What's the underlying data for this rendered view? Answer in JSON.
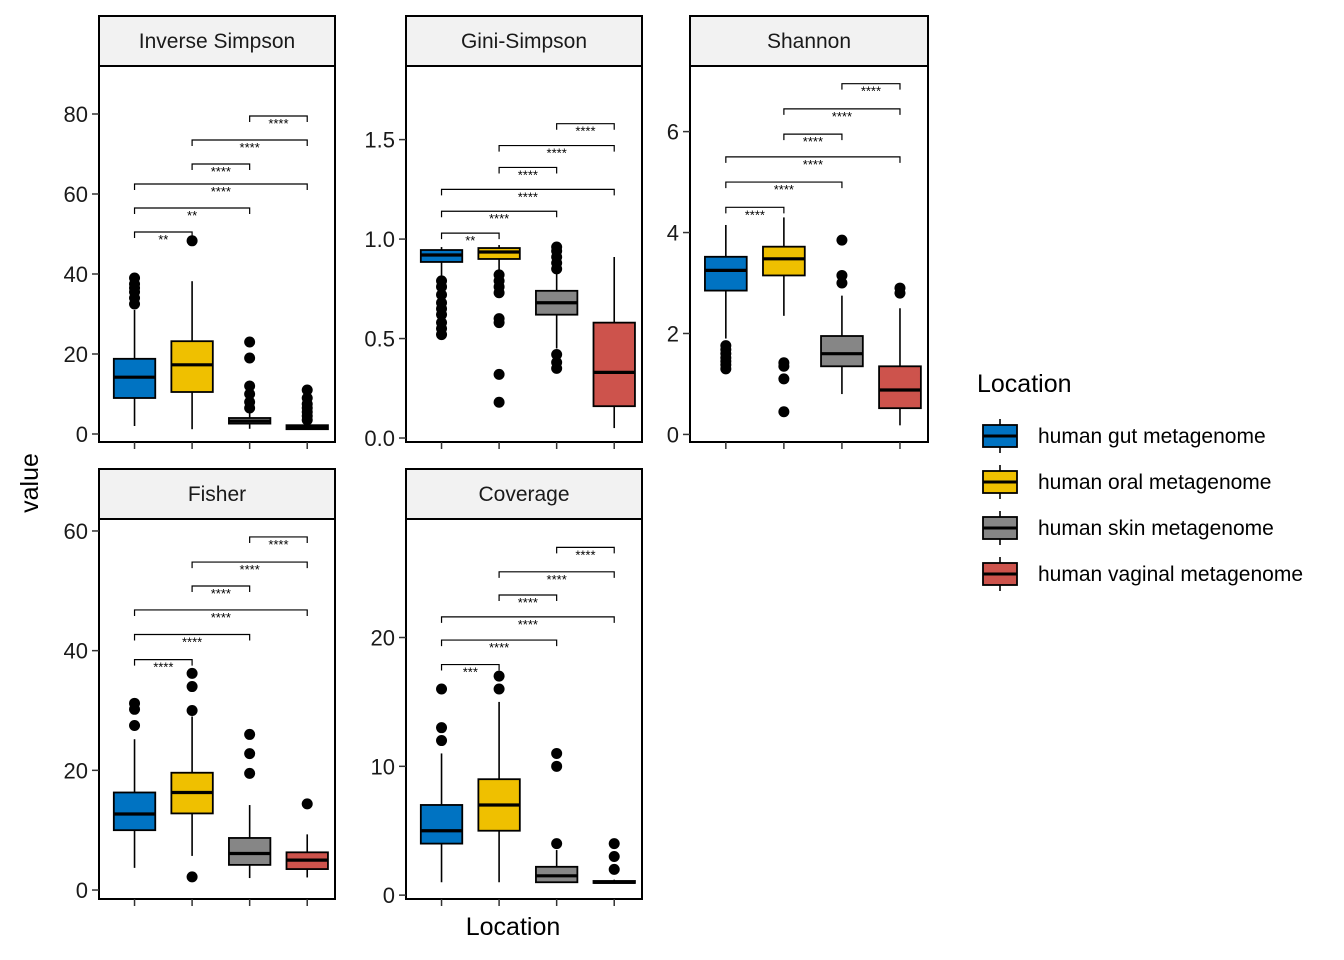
{
  "chart_data": {
    "type": "box",
    "xlabel": "Location",
    "ylabel": "value",
    "legend": {
      "title": "Location",
      "position": "right",
      "entries": [
        {
          "label": "human gut metagenome",
          "color": "#0073C2"
        },
        {
          "label": "human oral metagenome",
          "color": "#EFC000"
        },
        {
          "label": "human skin metagenome",
          "color": "#868686"
        },
        {
          "label": "human vaginal metagenome",
          "color": "#CD534C"
        }
      ]
    },
    "panels": [
      {
        "title": "Inverse Simpson",
        "ylim": [
          -2,
          92
        ],
        "yticks": [
          "0",
          "20",
          "40",
          "60",
          "80"
        ],
        "ytick_values": [
          0,
          20,
          40,
          60,
          80
        ],
        "boxes": [
          {
            "q1": 9,
            "median": 14.2,
            "q3": 18.8,
            "whisker_low": 2,
            "whisker_high": 31,
            "outliers": [
              32.5,
              34,
              35.5,
              36.5,
              37.5,
              39
            ]
          },
          {
            "q1": 10.5,
            "median": 17.3,
            "q3": 23.2,
            "whisker_low": 1.2,
            "whisker_high": 38.2,
            "outliers": [
              48.3
            ]
          },
          {
            "q1": 2.6,
            "median": 3.2,
            "q3": 4.0,
            "whisker_low": 1.3,
            "whisker_high": 5.5,
            "outliers": [
              6.5,
              8,
              10,
              12,
              19,
              23
            ]
          },
          {
            "q1": 1.2,
            "median": 1.7,
            "q3": 2.2,
            "whisker_low": 1.0,
            "whisker_high": 2.9,
            "outliers": [
              3.5,
              4.5,
              5.5,
              6.5,
              7.5,
              9,
              11
            ]
          }
        ],
        "comparisons": [
          {
            "from": 1,
            "to": 2,
            "label": "**",
            "y": 50.5
          },
          {
            "from": 1,
            "to": 3,
            "label": "**",
            "y": 56.5
          },
          {
            "from": 1,
            "to": 4,
            "label": "****",
            "y": 62.5
          },
          {
            "from": 2,
            "to": 3,
            "label": "****",
            "y": 67.5
          },
          {
            "from": 2,
            "to": 4,
            "label": "****",
            "y": 73.5
          },
          {
            "from": 3,
            "to": 4,
            "label": "****",
            "y": 79.5
          }
        ]
      },
      {
        "title": "Gini-Simpson",
        "ylim": [
          -0.02,
          1.87
        ],
        "yticks": [
          "0.0",
          "0.5",
          "1.0",
          "1.5"
        ],
        "ytick_values": [
          0,
          0.5,
          1.0,
          1.5
        ],
        "boxes": [
          {
            "q1": 0.885,
            "median": 0.92,
            "q3": 0.945,
            "whisker_low": 0.8,
            "whisker_high": 0.96,
            "outliers": [
              0.52,
              0.55,
              0.58,
              0.62,
              0.65,
              0.68,
              0.72,
              0.76,
              0.79
            ]
          },
          {
            "q1": 0.9,
            "median": 0.935,
            "q3": 0.955,
            "whisker_low": 0.83,
            "whisker_high": 0.97,
            "outliers": [
              0.18,
              0.32,
              0.58,
              0.6,
              0.73,
              0.76,
              0.79,
              0.82
            ]
          },
          {
            "q1": 0.62,
            "median": 0.68,
            "q3": 0.74,
            "whisker_low": 0.45,
            "whisker_high": 0.83,
            "outliers": [
              0.35,
              0.38,
              0.42,
              0.85,
              0.88,
              0.91,
              0.94,
              0.96
            ]
          },
          {
            "q1": 0.16,
            "median": 0.33,
            "q3": 0.58,
            "whisker_low": 0.05,
            "whisker_high": 0.91,
            "outliers": []
          }
        ],
        "comparisons": [
          {
            "from": 1,
            "to": 2,
            "label": "**",
            "y": 1.03
          },
          {
            "from": 1,
            "to": 3,
            "label": "****",
            "y": 1.14
          },
          {
            "from": 1,
            "to": 4,
            "label": "****",
            "y": 1.25
          },
          {
            "from": 2,
            "to": 3,
            "label": "****",
            "y": 1.36
          },
          {
            "from": 2,
            "to": 4,
            "label": "****",
            "y": 1.47
          },
          {
            "from": 3,
            "to": 4,
            "label": "****",
            "y": 1.58
          }
        ]
      },
      {
        "title": "Shannon",
        "ylim": [
          -0.15,
          7.3
        ],
        "yticks": [
          "0",
          "2",
          "4",
          "6"
        ],
        "ytick_values": [
          0,
          2,
          4,
          6
        ],
        "boxes": [
          {
            "q1": 2.85,
            "median": 3.25,
            "q3": 3.52,
            "whisker_low": 1.9,
            "whisker_high": 4.15,
            "outliers": [
              1.3,
              1.38,
              1.45,
              1.52,
              1.6,
              1.68,
              1.76
            ]
          },
          {
            "q1": 3.15,
            "median": 3.48,
            "q3": 3.72,
            "whisker_low": 2.35,
            "whisker_high": 4.3,
            "outliers": [
              0.45,
              1.1,
              1.35,
              1.42
            ]
          },
          {
            "q1": 1.35,
            "median": 1.6,
            "q3": 1.95,
            "whisker_low": 0.8,
            "whisker_high": 2.75,
            "outliers": [
              3.0,
              3.15,
              3.85
            ]
          },
          {
            "q1": 0.52,
            "median": 0.88,
            "q3": 1.35,
            "whisker_low": 0.18,
            "whisker_high": 2.5,
            "outliers": [
              2.8,
              2.9
            ]
          }
        ],
        "comparisons": [
          {
            "from": 1,
            "to": 2,
            "label": "****",
            "y": 4.5
          },
          {
            "from": 1,
            "to": 3,
            "label": "****",
            "y": 5.0
          },
          {
            "from": 1,
            "to": 4,
            "label": "****",
            "y": 5.5
          },
          {
            "from": 2,
            "to": 3,
            "label": "****",
            "y": 5.95
          },
          {
            "from": 2,
            "to": 4,
            "label": "****",
            "y": 6.45
          },
          {
            "from": 3,
            "to": 4,
            "label": "****",
            "y": 6.95
          }
        ]
      },
      {
        "title": "Fisher",
        "ylim": [
          -1.5,
          62
        ],
        "yticks": [
          "0",
          "20",
          "40",
          "60"
        ],
        "ytick_values": [
          0,
          20,
          40,
          60
        ],
        "boxes": [
          {
            "q1": 10,
            "median": 12.7,
            "q3": 16.3,
            "whisker_low": 3.7,
            "whisker_high": 25.2,
            "outliers": [
              27.5,
              30.2,
              31.2
            ]
          },
          {
            "q1": 12.8,
            "median": 16.3,
            "q3": 19.6,
            "whisker_low": 5.7,
            "whisker_high": 29,
            "outliers": [
              2.2,
              30,
              34,
              36.2
            ]
          },
          {
            "q1": 4.2,
            "median": 6.1,
            "q3": 8.7,
            "whisker_low": 2.0,
            "whisker_high": 14.2,
            "outliers": [
              19.5,
              22.8,
              26
            ]
          },
          {
            "q1": 3.5,
            "median": 5.0,
            "q3": 6.3,
            "whisker_low": 2.1,
            "whisker_high": 9.3,
            "outliers": [
              14.4
            ]
          }
        ],
        "comparisons": [
          {
            "from": 1,
            "to": 2,
            "label": "****",
            "y": 38.5
          },
          {
            "from": 1,
            "to": 3,
            "label": "****",
            "y": 42.7
          },
          {
            "from": 1,
            "to": 4,
            "label": "****",
            "y": 46.8
          },
          {
            "from": 2,
            "to": 3,
            "label": "****",
            "y": 50.8
          },
          {
            "from": 2,
            "to": 4,
            "label": "****",
            "y": 54.8
          },
          {
            "from": 3,
            "to": 4,
            "label": "****",
            "y": 59.0
          }
        ]
      },
      {
        "title": "Coverage",
        "ylim": [
          -0.3,
          29.2
        ],
        "yticks": [
          "0",
          "10",
          "20"
        ],
        "ytick_values": [
          0,
          10,
          20
        ],
        "boxes": [
          {
            "q1": 4,
            "median": 5,
            "q3": 7,
            "whisker_low": 1,
            "whisker_high": 11,
            "outliers": [
              12,
              13,
              16
            ]
          },
          {
            "q1": 5,
            "median": 7,
            "q3": 9,
            "whisker_low": 1,
            "whisker_high": 15,
            "outliers": [
              16,
              17
            ]
          },
          {
            "q1": 1,
            "median": 1.5,
            "q3": 2.2,
            "whisker_low": 1,
            "whisker_high": 3.5,
            "outliers": [
              4,
              10,
              11
            ]
          },
          {
            "q1": 1,
            "median": 1,
            "q3": 1.1,
            "whisker_low": 1,
            "whisker_high": 1.2,
            "outliers": [
              2,
              3,
              4
            ]
          }
        ],
        "comparisons": [
          {
            "from": 1,
            "to": 2,
            "label": "***",
            "y": 17.9
          },
          {
            "from": 1,
            "to": 3,
            "label": "****",
            "y": 19.8
          },
          {
            "from": 1,
            "to": 4,
            "label": "****",
            "y": 21.6
          },
          {
            "from": 2,
            "to": 3,
            "label": "****",
            "y": 23.3
          },
          {
            "from": 2,
            "to": 4,
            "label": "****",
            "y": 25.1
          },
          {
            "from": 3,
            "to": 4,
            "label": "****",
            "y": 27.0
          }
        ]
      }
    ]
  }
}
